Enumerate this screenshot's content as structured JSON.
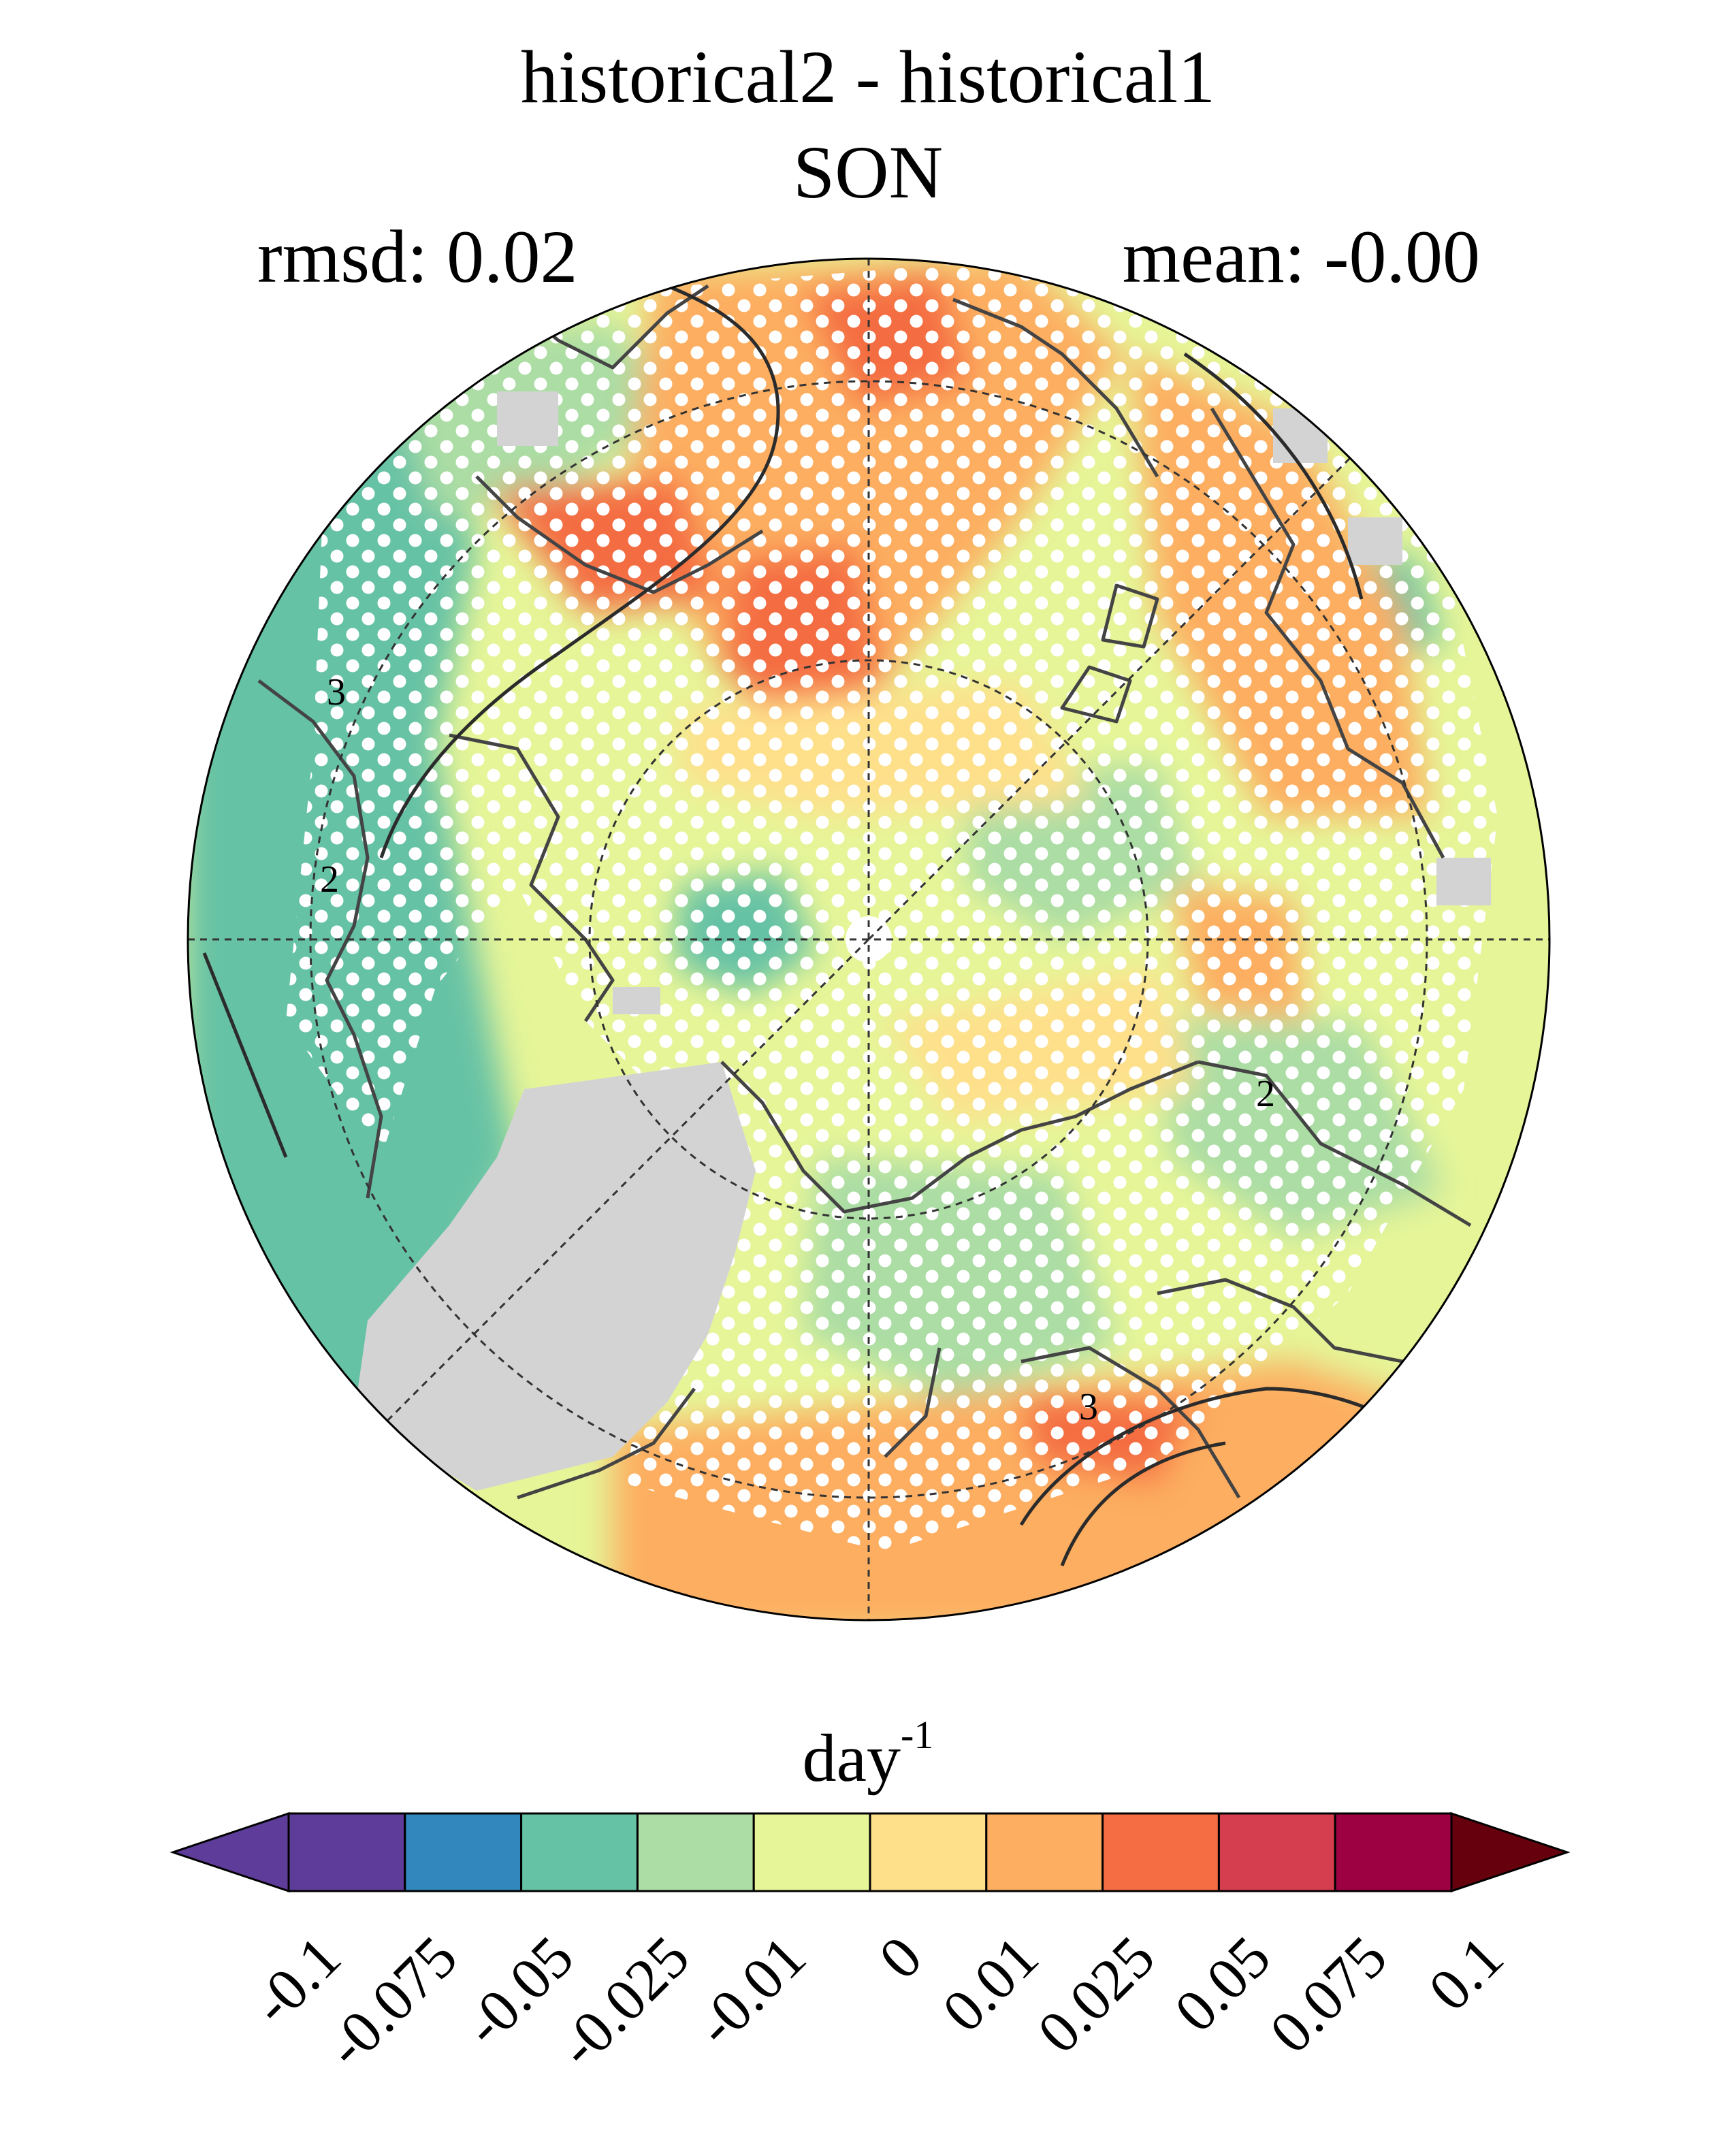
{
  "figure": {
    "title": "historical2 - historical1",
    "season": "SON",
    "rmsd_label": "rmsd: 0.02",
    "mean_label": "mean: -0.00"
  },
  "colorbar": {
    "units_base": "day",
    "units_exp": "-1",
    "tick_labels": [
      "-0.1",
      "-0.075",
      "-0.05",
      "-0.025",
      "-0.01",
      "0",
      "0.01",
      "0.025",
      "0.05",
      "0.075",
      "0.1"
    ],
    "colors": [
      "#5e3c99",
      "#3288bd",
      "#66c2a5",
      "#abdda4",
      "#e6f598",
      "#fee08b",
      "#fdae61",
      "#f46d43",
      "#d53e4f",
      "#9e0142"
    ],
    "under_color": "#5e3c99",
    "over_color": "#67000d"
  },
  "map": {
    "projection": "north-polar-stereographic",
    "missing_color": "#d3d3d3",
    "stipple_color": "#ffffff",
    "contour_labels": [
      "3",
      "2",
      "2",
      "3"
    ]
  }
}
